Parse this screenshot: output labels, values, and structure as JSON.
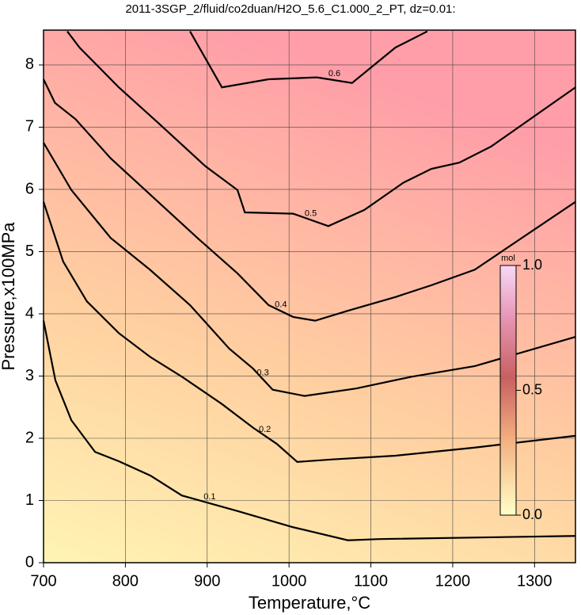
{
  "chart_data": {
    "type": "contour",
    "title": "2011-3SGP_2/fluid/co2duan/H2O_5.6_C1.000_2_PT, dz=0.01:",
    "x_label": "Temperature,°C",
    "y_label": "Pressure,x100MPa",
    "xlim": [
      700,
      1350
    ],
    "ylim": [
      0,
      8.56
    ],
    "xticks": [
      700,
      800,
      900,
      1000,
      1100,
      1200,
      1300
    ],
    "yticks": [
      0,
      1,
      2,
      3,
      4,
      5,
      6,
      7,
      8
    ],
    "grid": true,
    "series": [
      {
        "name": "0.1",
        "color": "#000000",
        "x": [
          700,
          714.5,
          734,
          763,
          792,
          830.6,
          869,
          937,
          1005,
          1072,
          1111,
          1350
        ],
        "y": [
          3.89,
          2.93,
          2.29,
          1.78,
          1.63,
          1.4,
          1.08,
          0.83,
          0.57,
          0.36,
          0.38,
          0.43
        ]
      },
      {
        "name": "0.2",
        "color": "#000000",
        "x": [
          700,
          724,
          753,
          792,
          830,
          869,
          918,
          956,
          985,
          1010,
          1053,
          1130,
          1227,
          1350
        ],
        "y": [
          5.8,
          4.84,
          4.2,
          3.69,
          3.31,
          2.99,
          2.55,
          2.17,
          1.91,
          1.62,
          1.66,
          1.72,
          1.85,
          2.04
        ]
      },
      {
        "name": "0.3",
        "color": "#000000",
        "x": [
          700,
          734,
          782,
          830,
          879,
          927,
          956,
          980,
          1019,
          1082,
          1150,
          1227,
          1350
        ],
        "y": [
          6.75,
          5.99,
          5.22,
          4.71,
          4.14,
          3.44,
          3.12,
          2.78,
          2.68,
          2.8,
          2.99,
          3.16,
          3.63
        ]
      },
      {
        "name": "0.4",
        "color": "#000000",
        "x": [
          700,
          714,
          739,
          782,
          840,
          888,
          937,
          975,
          1005,
          1032,
          1072,
          1130,
          1174,
          1227,
          1350
        ],
        "y": [
          7.77,
          7.39,
          7.13,
          6.5,
          5.8,
          5.22,
          4.65,
          4.14,
          3.95,
          3.89,
          4.05,
          4.27,
          4.46,
          4.71,
          5.8
        ]
      },
      {
        "name": "0.5",
        "color": "#000000",
        "x": [
          729,
          744,
          792,
          840,
          898,
          937,
          946,
          1005,
          1048,
          1092,
          1140,
          1174,
          1208,
          1247,
          1350
        ],
        "y": [
          8.54,
          8.28,
          7.64,
          7.07,
          6.37,
          5.99,
          5.63,
          5.61,
          5.41,
          5.67,
          6.11,
          6.33,
          6.43,
          6.69,
          7.64
        ]
      },
      {
        "name": "0.6",
        "color": "#000000",
        "x": [
          879,
          918,
          975,
          1034,
          1077,
          1130,
          1169
        ],
        "y": [
          8.54,
          7.64,
          7.77,
          7.8,
          7.71,
          8.28,
          8.54
        ]
      }
    ],
    "colorbar": {
      "label": "mol",
      "lim": [
        0,
        1
      ],
      "ticks": [
        {
          "value": 0,
          "label": "0.0"
        },
        {
          "value": 0.5,
          "label": "0.5"
        },
        {
          "value": 1,
          "label": "1.0"
        }
      ]
    }
  }
}
